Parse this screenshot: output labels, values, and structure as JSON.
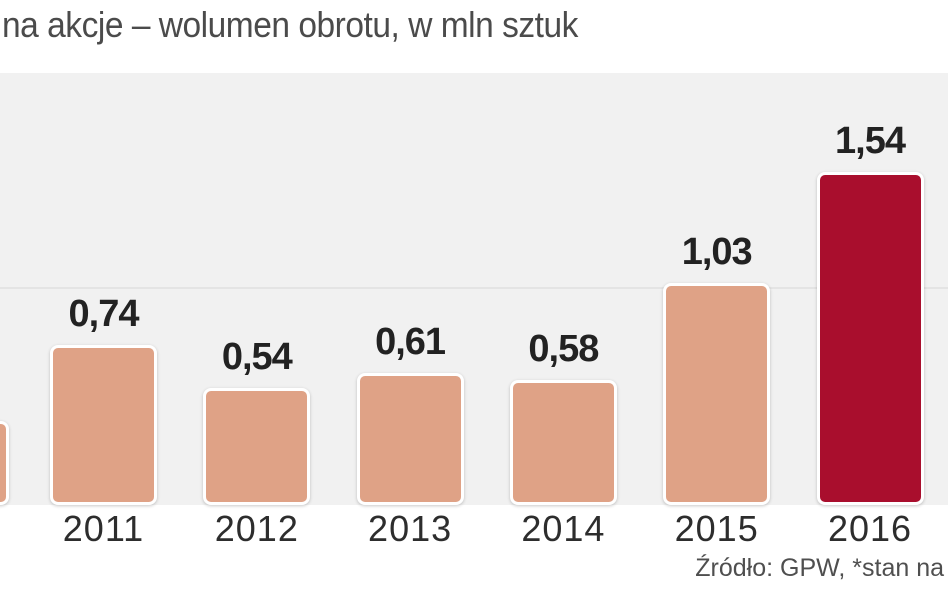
{
  "chart": {
    "title": "na akcje – wolumen obrotu, w mln sztuk",
    "source": "Źródło: GPW, *stan na"
  },
  "chart_data": {
    "type": "bar",
    "title": "na akcje – wolumen obrotu, w mln sztuk",
    "categories": [
      "2011",
      "2012",
      "2013",
      "2014",
      "2015",
      "2016"
    ],
    "values": [
      0.74,
      0.54,
      0.61,
      0.58,
      1.03,
      1.54
    ],
    "value_labels": [
      "0,74",
      "0,54",
      "0,61",
      "0,58",
      "1,03",
      "1,54"
    ],
    "highlight_index": 5,
    "partial_left_bar": {
      "est_value": 0.39,
      "note": "bar clipped by left image edge, no label visible"
    },
    "unit": "mln sztuk",
    "ylim": [
      0,
      2.0
    ],
    "gridline_value": 1.0,
    "grid": true,
    "legend": false,
    "bar_color": "#dfa286",
    "highlight_color": "#a90e2d",
    "panel_background": "#f1f1f1",
    "source": "Źródło: GPW, *stan na"
  }
}
